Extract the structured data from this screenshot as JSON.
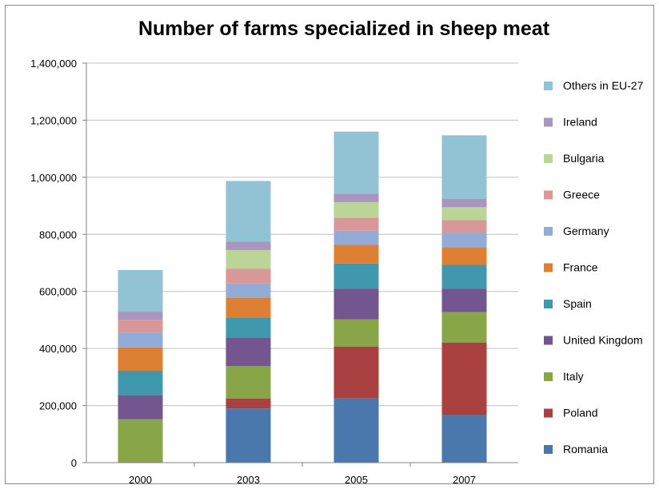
{
  "chart_data": {
    "type": "bar",
    "stacked": true,
    "title": "Number of farms specialized in sheep meat",
    "xlabel": "",
    "ylabel": "",
    "categories": [
      "2000",
      "2003",
      "2005",
      "2007"
    ],
    "ylim": [
      0,
      1400000
    ],
    "yticks": [
      0,
      200000,
      400000,
      600000,
      800000,
      1000000,
      1200000,
      1400000
    ],
    "ytick_labels": [
      "0",
      "200,000",
      "400,000",
      "600,000",
      "800,000",
      "1,000,000",
      "1,200,000",
      "1,400,000"
    ],
    "grid": true,
    "legend_position": "right",
    "series": [
      {
        "name": "Romania",
        "color": "#4a78ac",
        "values": [
          0,
          190000,
          225000,
          168000
        ]
      },
      {
        "name": "Poland",
        "color": "#a84140",
        "values": [
          0,
          35000,
          182000,
          253000
        ]
      },
      {
        "name": "Italy",
        "color": "#88a548",
        "values": [
          152000,
          113000,
          95000,
          107000
        ]
      },
      {
        "name": "United Kingdom",
        "color": "#735590",
        "values": [
          85000,
          100000,
          108000,
          82000
        ]
      },
      {
        "name": "Spain",
        "color": "#3f98ad",
        "values": [
          85000,
          70000,
          88000,
          83000
        ]
      },
      {
        "name": "France",
        "color": "#dd8034",
        "values": [
          82000,
          70000,
          65000,
          62000
        ]
      },
      {
        "name": "Germany",
        "color": "#93abd7",
        "values": [
          52000,
          50000,
          50000,
          50000
        ]
      },
      {
        "name": "Greece",
        "color": "#d79897",
        "values": [
          45000,
          52000,
          45000,
          45000
        ]
      },
      {
        "name": "Bulgaria",
        "color": "#bad597",
        "values": [
          0,
          65000,
          55000,
          45000
        ]
      },
      {
        "name": "Ireland",
        "color": "#a896be",
        "values": [
          28000,
          30000,
          30000,
          30000
        ]
      },
      {
        "name": "Others in EU-27",
        "color": "#91c3d5",
        "values": [
          146000,
          212000,
          217000,
          222000
        ]
      }
    ]
  }
}
